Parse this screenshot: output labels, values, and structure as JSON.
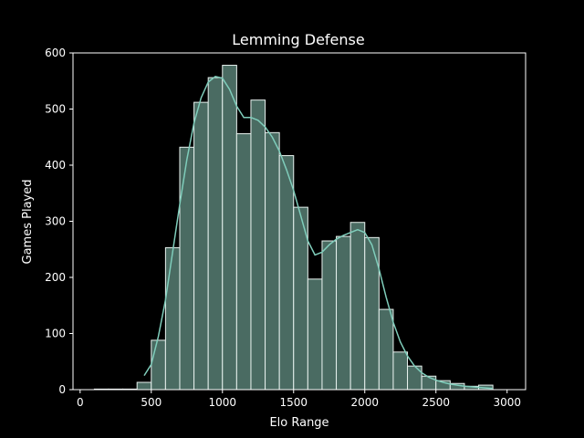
{
  "chart_data": {
    "type": "bar",
    "title": "Lemming Defense",
    "xlabel": "Elo Range",
    "ylabel": "Games Played",
    "xlim": [
      -50,
      3130
    ],
    "ylim": [
      0,
      600
    ],
    "xticks": [
      0,
      500,
      1000,
      1500,
      2000,
      2500,
      3000
    ],
    "yticks": [
      0,
      100,
      200,
      300,
      400,
      500,
      600
    ],
    "grid": false,
    "bin_width": 100,
    "bins": [
      {
        "x0": 100,
        "x1": 200,
        "value": 1
      },
      {
        "x0": 200,
        "x1": 300,
        "value": 1
      },
      {
        "x0": 300,
        "x1": 400,
        "value": 1
      },
      {
        "x0": 400,
        "x1": 500,
        "value": 13
      },
      {
        "x0": 500,
        "x1": 600,
        "value": 88
      },
      {
        "x0": 600,
        "x1": 700,
        "value": 253
      },
      {
        "x0": 700,
        "x1": 800,
        "value": 432
      },
      {
        "x0": 800,
        "x1": 900,
        "value": 512
      },
      {
        "x0": 900,
        "x1": 1000,
        "value": 556
      },
      {
        "x0": 1000,
        "x1": 1100,
        "value": 578
      },
      {
        "x0": 1100,
        "x1": 1200,
        "value": 456
      },
      {
        "x0": 1200,
        "x1": 1300,
        "value": 516
      },
      {
        "x0": 1300,
        "x1": 1400,
        "value": 458
      },
      {
        "x0": 1400,
        "x1": 1500,
        "value": 417
      },
      {
        "x0": 1500,
        "x1": 1600,
        "value": 325
      },
      {
        "x0": 1600,
        "x1": 1700,
        "value": 197
      },
      {
        "x0": 1700,
        "x1": 1800,
        "value": 265
      },
      {
        "x0": 1800,
        "x1": 1900,
        "value": 273
      },
      {
        "x0": 1900,
        "x1": 2000,
        "value": 298
      },
      {
        "x0": 2000,
        "x1": 2100,
        "value": 271
      },
      {
        "x0": 2100,
        "x1": 2200,
        "value": 143
      },
      {
        "x0": 2200,
        "x1": 2300,
        "value": 67
      },
      {
        "x0": 2300,
        "x1": 2400,
        "value": 42
      },
      {
        "x0": 2400,
        "x1": 2500,
        "value": 24
      },
      {
        "x0": 2500,
        "x1": 2600,
        "value": 16
      },
      {
        "x0": 2600,
        "x1": 2700,
        "value": 11
      },
      {
        "x0": 2700,
        "x1": 2800,
        "value": 6
      },
      {
        "x0": 2800,
        "x1": 2900,
        "value": 8
      }
    ],
    "kde": {
      "x": [
        450,
        500,
        550,
        600,
        650,
        700,
        750,
        800,
        850,
        900,
        950,
        1000,
        1050,
        1100,
        1150,
        1200,
        1250,
        1300,
        1350,
        1400,
        1450,
        1500,
        1550,
        1600,
        1650,
        1700,
        1750,
        1800,
        1850,
        1900,
        1950,
        2000,
        2050,
        2100,
        2150,
        2200,
        2250,
        2300,
        2350,
        2400,
        2450,
        2500,
        2550,
        2600,
        2650,
        2700,
        2750,
        2800,
        2850,
        2900
      ],
      "y": [
        25,
        45,
        95,
        160,
        245,
        330,
        410,
        475,
        520,
        548,
        558,
        555,
        535,
        505,
        485,
        485,
        480,
        468,
        450,
        425,
        392,
        355,
        310,
        265,
        240,
        245,
        258,
        268,
        275,
        280,
        285,
        280,
        258,
        215,
        165,
        120,
        85,
        60,
        42,
        30,
        22,
        17,
        13,
        10,
        8,
        6,
        5,
        4,
        3,
        2
      ]
    },
    "colors": {
      "bar_fill": "#4a6b62",
      "bar_edge": "#e8f2ef",
      "kde_line": "#7fcdbb",
      "axes": "#ffffff",
      "text": "#ffffff",
      "background": "#000000"
    }
  }
}
